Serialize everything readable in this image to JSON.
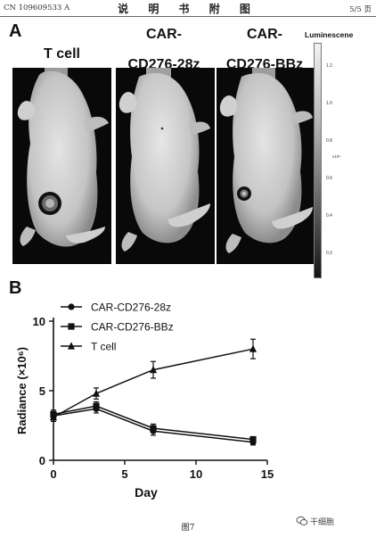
{
  "header": {
    "left": "CN 109609533 A",
    "center": "说 明 书 附 图",
    "right": "5/5 页"
  },
  "panel_a": {
    "letter": "A",
    "columns": [
      {
        "line1": "T cell",
        "line2": ""
      },
      {
        "line1": "CAR-",
        "line2": "CD276-28z"
      },
      {
        "line1": "CAR-",
        "line2": "CD276-BBz"
      }
    ],
    "luminescence": {
      "title": "Luminescene",
      "ticks": [
        "1.2",
        "1.0",
        "0.8",
        "0.6",
        "0.4",
        "0.2"
      ],
      "exponent": "x10⁹",
      "colormap": [
        "#f2f2f2",
        "#151515"
      ]
    }
  },
  "panel_b": {
    "letter": "B"
  },
  "chart_data": {
    "type": "line",
    "x": [
      0,
      3,
      7,
      14
    ],
    "xlabel": "Day",
    "ylabel": "Radiance (×10⁶)",
    "xlim": [
      0,
      15
    ],
    "ylim": [
      0,
      10
    ],
    "xticks": [
      0,
      5,
      10,
      15
    ],
    "yticks": [
      0,
      5,
      10
    ],
    "legend_position": "top-left",
    "series": [
      {
        "name": "CAR-CD276-28z",
        "marker": "circle",
        "values": [
          3.2,
          3.7,
          2.1,
          1.3
        ],
        "err": [
          0.4,
          0.3,
          0.3,
          0.2
        ]
      },
      {
        "name": "CAR-CD276-BBz",
        "marker": "square",
        "values": [
          3.3,
          3.9,
          2.3,
          1.5
        ],
        "err": [
          0.3,
          0.3,
          0.3,
          0.2
        ]
      },
      {
        "name": "T cell",
        "marker": "triangle",
        "values": [
          3.1,
          4.8,
          6.5,
          8.0
        ],
        "err": [
          0.3,
          0.4,
          0.6,
          0.7
        ]
      }
    ]
  },
  "caption": "图7",
  "watermark": "干细胞"
}
